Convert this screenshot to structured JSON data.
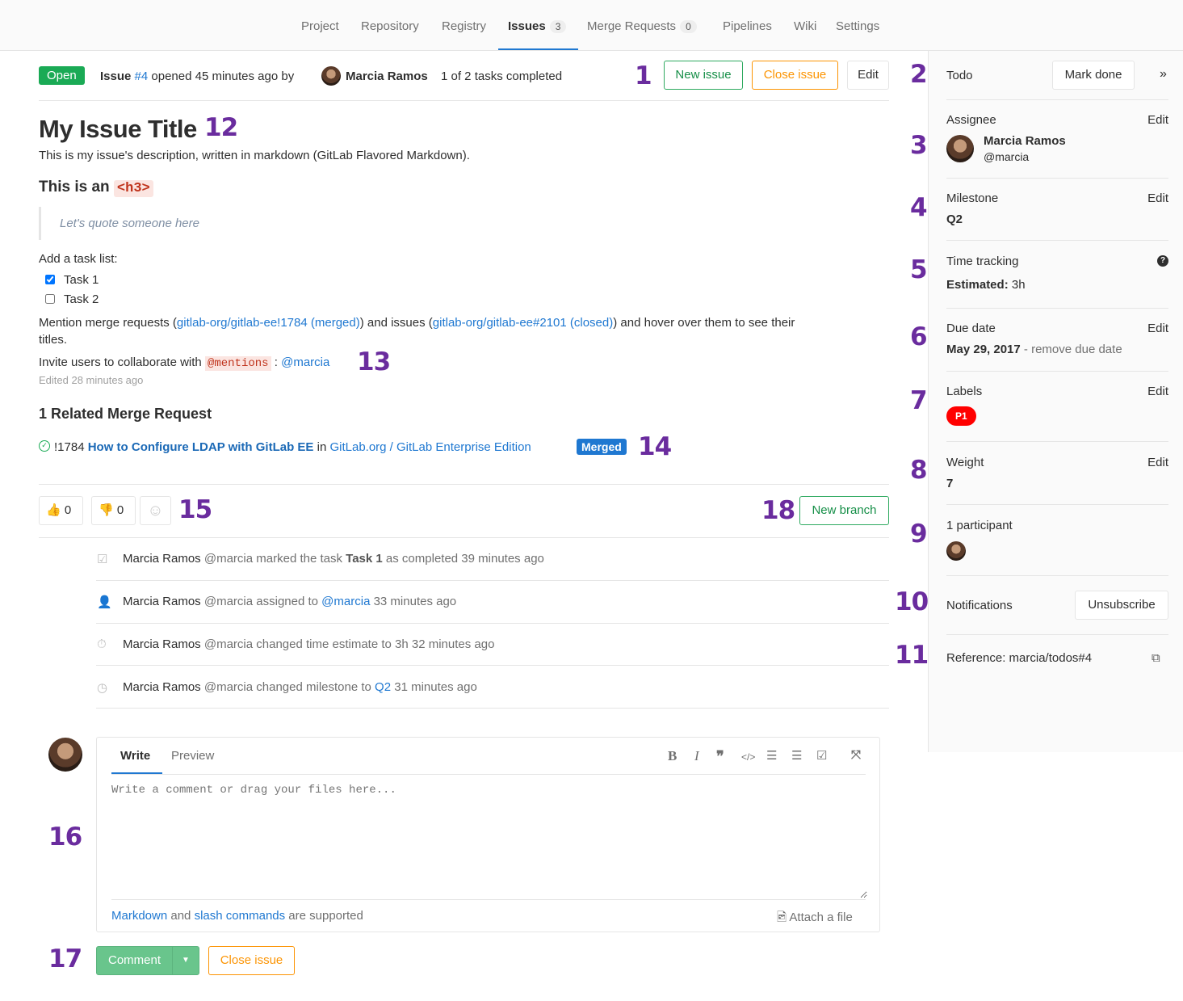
{
  "nav": {
    "items": [
      {
        "label": "Project"
      },
      {
        "label": "Repository"
      },
      {
        "label": "Registry"
      },
      {
        "label": "Issues",
        "count": "3"
      },
      {
        "label": "Merge Requests",
        "count": "0"
      },
      {
        "label": "Pipelines"
      },
      {
        "label": "Wiki"
      },
      {
        "label": "Settings"
      }
    ]
  },
  "header": {
    "status": "Open",
    "issue_label": "Issue",
    "issue_ref": "#4",
    "opened": "opened 45 minutes ago by",
    "author": "Marcia Ramos",
    "tasks": "1 of 2 tasks completed",
    "new_issue": "New issue",
    "close_issue": "Close issue",
    "edit": "Edit"
  },
  "issue": {
    "title": "My Issue Title",
    "description": "This is my issue's description, written in markdown (GitLab Flavored Markdown).",
    "h3_text": "This is an",
    "h3_code": "<h3>",
    "quote": "Let's quote someone here",
    "tasklist_label": "Add a task list:",
    "tasks": [
      {
        "label": "Task 1",
        "checked": true
      },
      {
        "label": "Task 2",
        "checked": false
      }
    ],
    "mention_1": "Mention merge requests (",
    "mr_link": "gitlab-org/gitlab-ee!1784 (merged)",
    "mention_2": ") and issues (",
    "issue_link": "gitlab-org/gitlab-ee#2101 (closed)",
    "mention_3": ") and hover over them to see their",
    "mention_4": "titles.",
    "invite": "Invite users to collaborate with",
    "mentions_code": "@mentions",
    "invite_sep": ":",
    "invite_user": "@marcia",
    "edited": "Edited 28 minutes ago"
  },
  "related": {
    "heading": "1 Related Merge Request",
    "mr_id": "!1784",
    "mr_title": "How to Configure LDAP with GitLab EE",
    "in": "in",
    "project": "GitLab.org / GitLab Enterprise Edition",
    "badge": "Merged"
  },
  "awards": {
    "thumbsup": "0",
    "thumbsdown": "0",
    "new_branch": "New branch"
  },
  "events": [
    {
      "author": "Marcia Ramos",
      "handle": "@marcia",
      "pre": "marked the task",
      "strong": "Task 1",
      "post": "as completed 39 minutes ago",
      "icon": "checkbox-icon"
    },
    {
      "author": "Marcia Ramos",
      "handle": "@marcia",
      "pre": "assigned to",
      "link": "@marcia",
      "post": "33 minutes ago",
      "icon": "user-icon"
    },
    {
      "author": "Marcia Ramos",
      "handle": "@marcia",
      "pre": "changed time estimate to 3h 32 minutes ago",
      "icon": "stopwatch-icon"
    },
    {
      "author": "Marcia Ramos",
      "handle": "@marcia",
      "pre": "changed milestone to",
      "link": "Q2",
      "post": "31 minutes ago",
      "icon": "clock-icon"
    }
  ],
  "comment": {
    "tab_write": "Write",
    "tab_preview": "Preview",
    "placeholder": "Write a comment or drag your files here...",
    "footer_link1": "Markdown",
    "footer_and": "and",
    "footer_link2": "slash commands",
    "footer_rest": "are supported",
    "attach": "Attach a file",
    "submit": "Comment",
    "close": "Close issue"
  },
  "sidebar": {
    "todo": "Todo",
    "mark_done": "Mark done",
    "edit": "Edit",
    "assignee_label": "Assignee",
    "assignee_name": "Marcia Ramos",
    "assignee_handle": "@marcia",
    "milestone_label": "Milestone",
    "milestone": "Q2",
    "time_label": "Time tracking",
    "estimated_label": "Estimated:",
    "estimated": "3h",
    "due_label": "Due date",
    "due": "May 29, 2017",
    "due_remove": "- remove due date",
    "labels_label": "Labels",
    "label_p1": "P1",
    "weight_label": "Weight",
    "weight": "7",
    "participants": "1 participant",
    "notifications": "Notifications",
    "unsubscribe": "Unsubscribe",
    "reference": "Reference: marcia/todos#4"
  },
  "annotations": [
    "1",
    "2",
    "3",
    "4",
    "5",
    "6",
    "7",
    "8",
    "9",
    "10",
    "11",
    "12",
    "13",
    "14",
    "15",
    "16",
    "17",
    "18"
  ],
  "colors": {
    "accent": "#1f78d1",
    "green": "#1aaa55",
    "orange": "#fc9403",
    "annotation": "#6a2c9e",
    "label_p1": "#ff0000"
  }
}
